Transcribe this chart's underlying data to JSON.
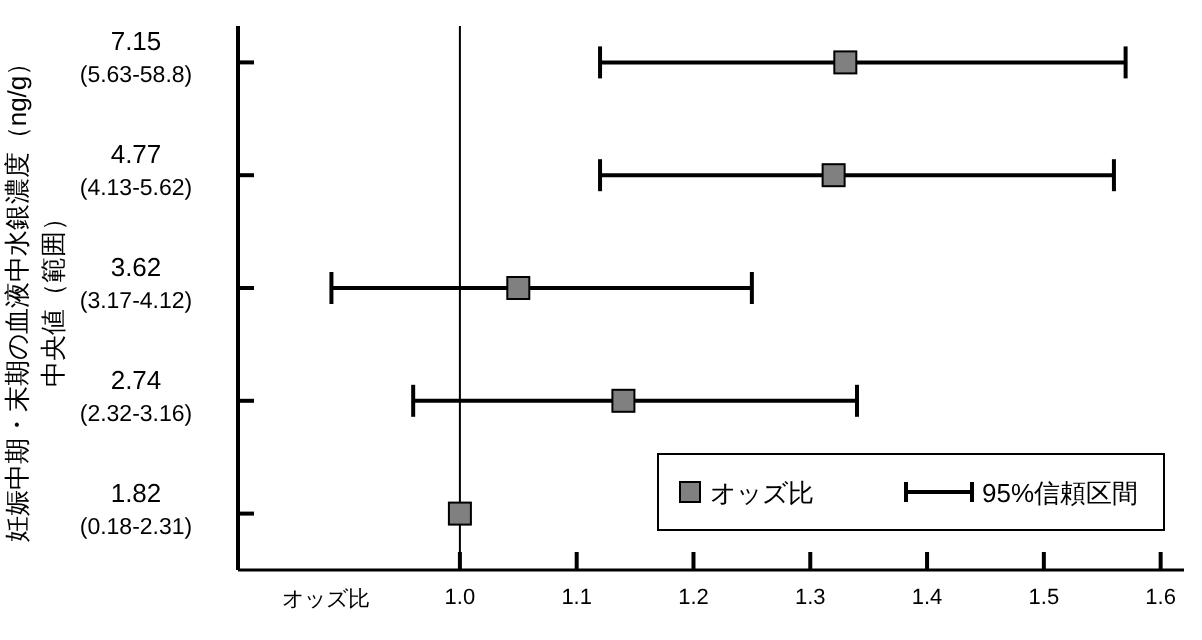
{
  "chart_data": {
    "type": "scatter",
    "ylabel": "妊娠中期・末期の血液中水銀濃度（ng/g）中央値（範囲）",
    "xlabel": "オッズ比",
    "categories": [
      "7.15\n(5.63-58.8)",
      "4.77\n(4.13-5.62)",
      "3.62\n(3.17-4.12)",
      "2.74\n(2.32-3.16)",
      "1.82\n(0.18-2.31)"
    ],
    "orientation": "horizontal",
    "series": [
      {
        "name": "オッズ比",
        "color": "#808080",
        "values": [
          1.33,
          1.32,
          1.05,
          1.14,
          1.0
        ],
        "errors": [
          [
            1.12,
            1.57
          ],
          [
            1.12,
            1.56
          ],
          [
            0.89,
            1.25
          ],
          [
            0.96,
            1.34
          ],
          null
        ]
      }
    ],
    "xlim": [
      0.81,
      1.62
    ],
    "xticks": [
      {
        "value": 1,
        "label": "1.0"
      },
      1.1,
      1.2,
      1.3,
      1.4,
      1.5,
      1.6
    ],
    "ref_lines": [
      {
        "axis": "x",
        "value": 1,
        "color": "#000000"
      }
    ],
    "annotations": [
      "95%信頼区間"
    ],
    "marker": "square",
    "grid": false,
    "legend": "bottom right"
  }
}
